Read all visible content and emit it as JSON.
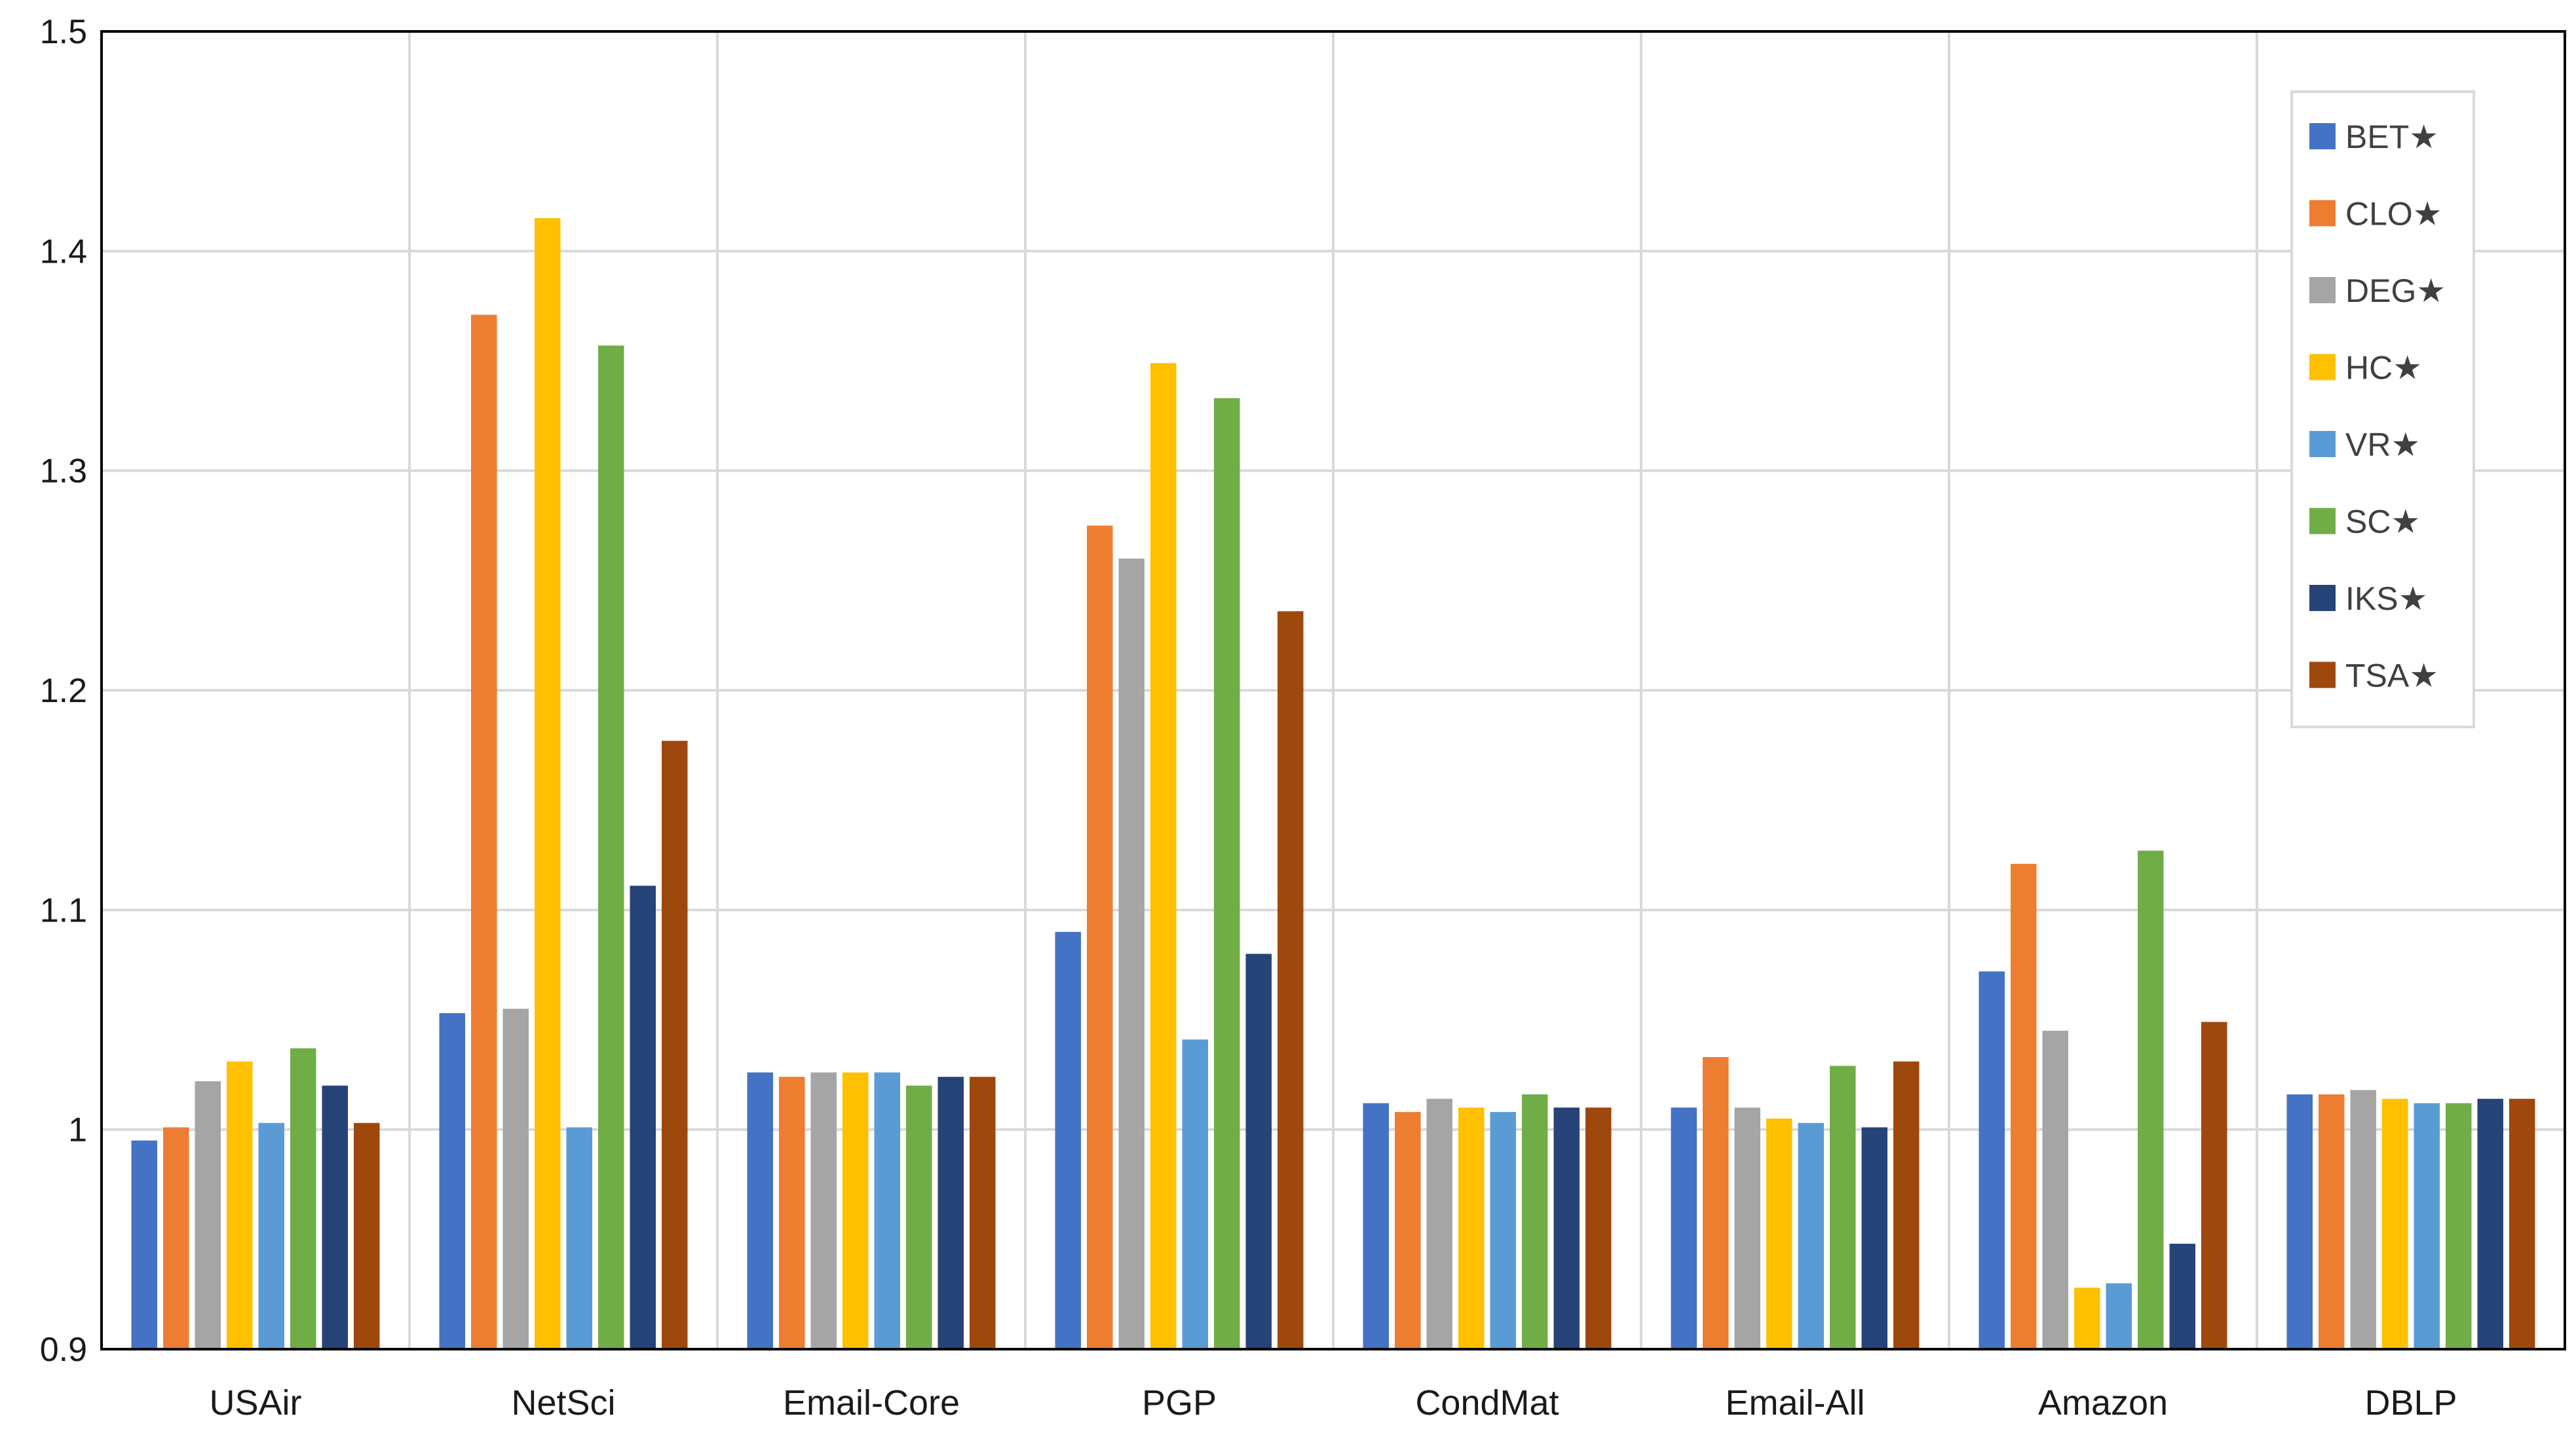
{
  "chart_data": {
    "type": "bar",
    "categories": [
      "USAir",
      "NetSci",
      "Email-Core",
      "PGP",
      "CondMat",
      "Email-All",
      "Amazon",
      "DBLP"
    ],
    "ylim": [
      0.9,
      1.5
    ],
    "yticks": [
      {
        "value": 0.9,
        "label": "0.9"
      },
      {
        "value": 1.0,
        "label": "1"
      },
      {
        "value": 1.1,
        "label": "1.1"
      },
      {
        "value": 1.2,
        "label": "1.2"
      },
      {
        "value": 1.3,
        "label": "1.3"
      },
      {
        "value": 1.4,
        "label": "1.4"
      },
      {
        "value": 1.5,
        "label": "1.5"
      }
    ],
    "grid": true,
    "legend_position": "top-right",
    "series": [
      {
        "name": "BET★",
        "color": "#4472C4",
        "values": [
          0.995,
          1.053,
          1.026,
          1.09,
          1.012,
          1.01,
          1.072,
          1.016
        ]
      },
      {
        "name": "CLO★",
        "color": "#ED7D31",
        "values": [
          1.001,
          1.371,
          1.024,
          1.275,
          1.008,
          1.033,
          1.121,
          1.016
        ]
      },
      {
        "name": "DEG★",
        "color": "#A5A5A5",
        "values": [
          1.022,
          1.055,
          1.026,
          1.26,
          1.014,
          1.01,
          1.045,
          1.018
        ]
      },
      {
        "name": "HC★",
        "color": "#FFC000",
        "values": [
          1.031,
          1.415,
          1.026,
          1.349,
          1.01,
          1.005,
          0.928,
          1.014
        ]
      },
      {
        "name": "VR★",
        "color": "#5B9BD5",
        "values": [
          1.003,
          1.001,
          1.026,
          1.041,
          1.008,
          1.003,
          0.93,
          1.012
        ]
      },
      {
        "name": "SC★",
        "color": "#70AD47",
        "values": [
          1.037,
          1.357,
          1.02,
          1.333,
          1.016,
          1.029,
          1.127,
          1.012
        ]
      },
      {
        "name": "IKS★",
        "color": "#264478",
        "values": [
          1.02,
          1.111,
          1.024,
          1.08,
          1.01,
          1.001,
          0.948,
          1.014
        ]
      },
      {
        "name": "TSA★",
        "color": "#9E480E",
        "values": [
          1.003,
          1.177,
          1.024,
          1.236,
          1.01,
          1.031,
          1.049,
          1.014
        ]
      }
    ]
  }
}
